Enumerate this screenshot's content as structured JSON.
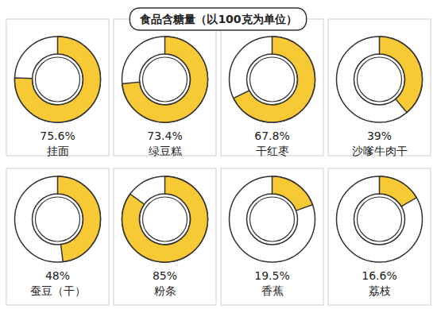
{
  "chart_data": {
    "type": "donut",
    "title": "食品含糖量（以100克为单位）",
    "categories": [
      "挂面",
      "绿豆糕",
      "干红枣",
      "沙嗲牛肉干",
      "蚕豆（干）",
      "粉条",
      "香蕉",
      "荔枝"
    ],
    "values": [
      75.6,
      73.4,
      67.8,
      39,
      48,
      85,
      19.5,
      16.6
    ],
    "value_labels": [
      "75.6%",
      "73.4%",
      "67.8%",
      "39%",
      "48%",
      "85%",
      "19.5%",
      "16.6%"
    ],
    "ylim": [
      0,
      100
    ],
    "color": "#f6c935",
    "data_labels": true
  }
}
